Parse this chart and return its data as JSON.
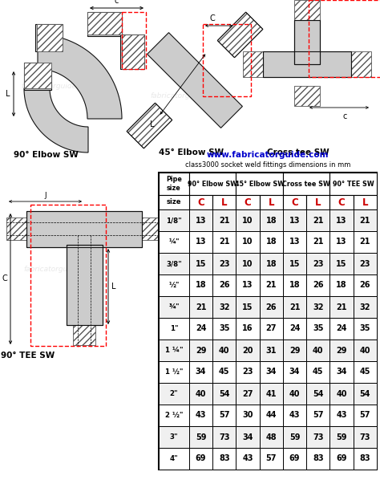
{
  "title_url": "www.fabricatorguide.com",
  "title_sub": "class3000 socket weld fittings dimensions in mm",
  "title_url_color": "#0000cc",
  "title_sub_color": "#000000",
  "bg_color": "#ffffff",
  "pipe_sizes": [
    "1/8\"",
    "¼\"",
    "3/8\"",
    "½\"",
    "¾\"",
    "1\"",
    "1 ¼\"",
    "1 ½\"",
    "2\"",
    "2 ½\"",
    "3\"",
    "4\""
  ],
  "sub_headers": [
    "C",
    "L",
    "C",
    "L",
    "C",
    "L",
    "C",
    "L"
  ],
  "col_group_labels": [
    "Pipe\nsize",
    "90° Elbow SW",
    "45° Elbow SW",
    "Cross tee SW",
    "90° TEE SW"
  ],
  "data": [
    [
      13,
      21,
      10,
      18,
      13,
      21,
      13,
      21
    ],
    [
      13,
      21,
      10,
      18,
      13,
      21,
      13,
      21
    ],
    [
      15,
      23,
      10,
      18,
      15,
      23,
      15,
      23
    ],
    [
      18,
      26,
      13,
      21,
      18,
      26,
      18,
      26
    ],
    [
      21,
      32,
      15,
      26,
      21,
      32,
      21,
      32
    ],
    [
      24,
      35,
      16,
      27,
      24,
      35,
      24,
      35
    ],
    [
      29,
      40,
      20,
      31,
      29,
      40,
      29,
      40
    ],
    [
      34,
      45,
      23,
      34,
      34,
      45,
      34,
      45
    ],
    [
      40,
      54,
      27,
      41,
      40,
      54,
      40,
      54
    ],
    [
      43,
      57,
      30,
      44,
      43,
      57,
      43,
      57
    ],
    [
      59,
      73,
      34,
      48,
      59,
      73,
      59,
      73
    ],
    [
      69,
      83,
      43,
      57,
      69,
      83,
      69,
      83
    ]
  ],
  "cl_color": "#cc0000",
  "label_90elbow": "90° Elbow SW",
  "label_45elbow": "45° Elbow SW",
  "label_crosstee": "Cross tee SW",
  "label_90tee": "90° TEE SW",
  "watermark": "fabricatorguide.com",
  "watermark_alpha": 0.18,
  "diagram_bg": "#e8e8e8",
  "hatch_color": "#555555",
  "body_color": "#cccccc",
  "line_color": "#111111"
}
